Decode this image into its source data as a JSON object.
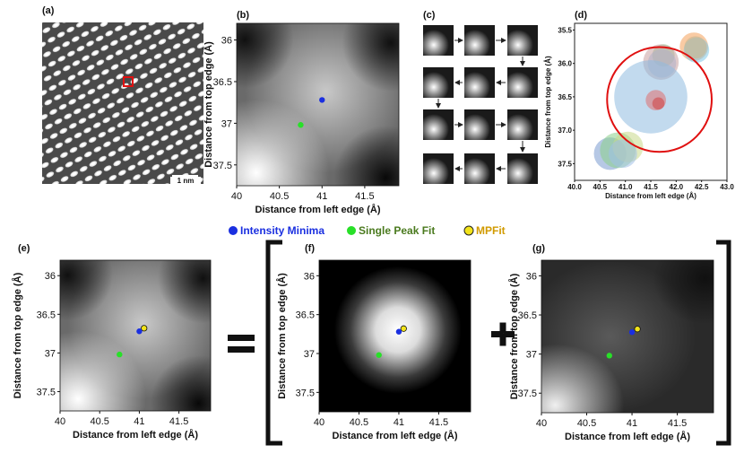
{
  "figure": {
    "panel_labels": {
      "a": "(a)",
      "b": "(b)",
      "c": "(c)",
      "d": "(d)",
      "e": "(e)",
      "f": "(f)",
      "g": "(g)"
    },
    "scale_bar": "1 nm",
    "xlabel": "Distance from left edge (Å)",
    "ylabel": "Distance from top edge (Å)",
    "x_ticks": [
      "40",
      "40.5",
      "41",
      "41.5"
    ],
    "y_ticks": [
      "36",
      "36.5",
      "37",
      "37.5"
    ],
    "d_x_ticks": [
      "40.0",
      "40.5",
      "41.0",
      "41.5",
      "42.0",
      "42.5",
      "43.0"
    ],
    "d_y_ticks": [
      "35.5",
      "36.0",
      "36.5",
      "37.0",
      "37.5"
    ],
    "legend": [
      {
        "label": "Intensity Minima",
        "color": "#1a2fe0"
      },
      {
        "label": "Single Peak Fit",
        "color": "#28e028"
      },
      {
        "label": "MPFit",
        "color": "#f2e31a"
      }
    ],
    "legend_text_colors": {
      "minima": "#1a2fe0",
      "single": "#4a7a1e",
      "mpfit": "#d19a00"
    },
    "equation": {
      "equals": "=",
      "plus": "+"
    }
  },
  "chart_data": {
    "type": "scatter",
    "title": "",
    "xlabel": "Distance from left edge (Å)",
    "ylabel": "Distance from top edge (Å)",
    "xlim": [
      40,
      41.9
    ],
    "ylim": [
      37.75,
      35.8
    ],
    "series": [
      {
        "name": "Intensity Minima",
        "x": [
          41.0
        ],
        "y": [
          36.72
        ]
      },
      {
        "name": "Single Peak Fit",
        "x": [
          40.75
        ],
        "y": [
          37.02
        ]
      },
      {
        "name": "MPFit",
        "x": [
          41.06
        ],
        "y": [
          36.68
        ]
      }
    ],
    "cluster_plot": {
      "xlabel": "Distance from left edge (Å)",
      "ylabel": "Distance from top edge (Å)",
      "xlim": [
        40.0,
        43.0
      ],
      "ylim": [
        37.75,
        35.4
      ],
      "highlight_circle": {
        "x": 41.67,
        "y": 36.54,
        "r": 1.03
      }
    }
  }
}
